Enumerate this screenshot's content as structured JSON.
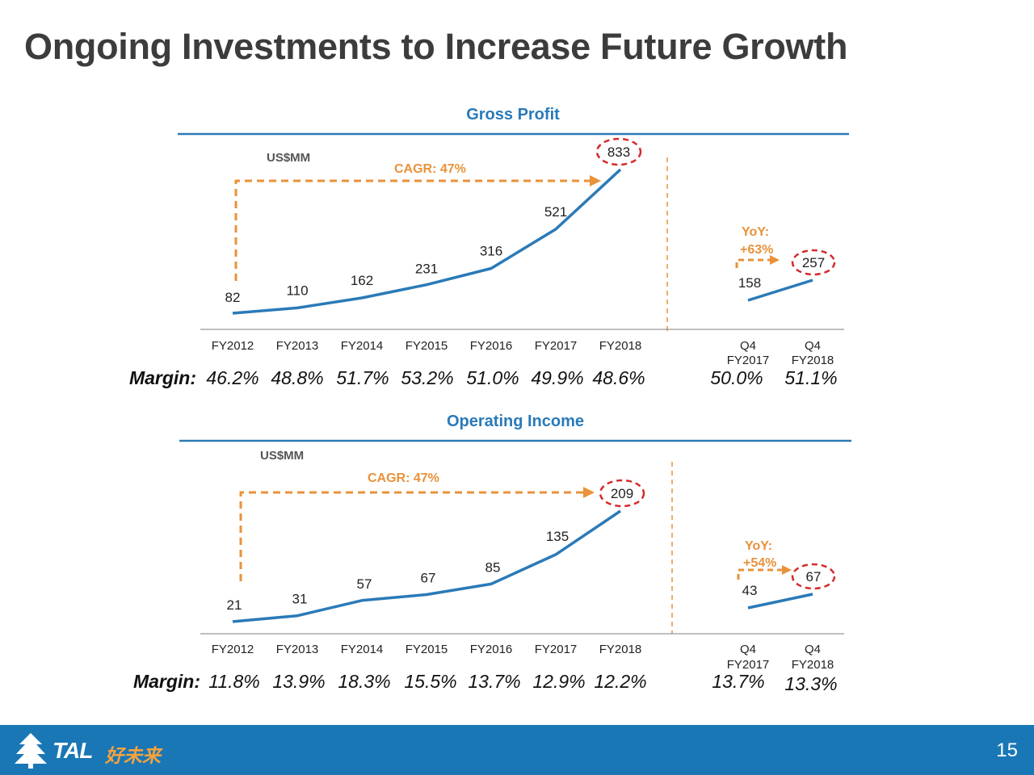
{
  "slide": {
    "title": "Ongoing Investments to Increase Future Growth",
    "page_number": "15"
  },
  "footer": {
    "brand": "TAL",
    "brand_cn": "好未来"
  },
  "colors": {
    "line": "#2a7ab8",
    "accent": "#e8923a",
    "highlight": "#d62a2a",
    "footer": "#1a77b6"
  },
  "chart_data": [
    {
      "type": "line",
      "title": "Gross Profit",
      "unit": "US$MM",
      "annual": {
        "categories": [
          "FY2012",
          "FY2013",
          "FY2014",
          "FY2015",
          "FY2016",
          "FY2017",
          "FY2018"
        ],
        "values": [
          82,
          110,
          162,
          231,
          316,
          521,
          833
        ],
        "margins": [
          "46.2%",
          "48.8%",
          "51.7%",
          "53.2%",
          "51.0%",
          "49.9%",
          "48.6%"
        ],
        "cagr": "CAGR: 47%"
      },
      "quarterly": {
        "categories": [
          [
            "Q4",
            "FY2017"
          ],
          [
            "Q4",
            "FY2018"
          ]
        ],
        "values": [
          158,
          257
        ],
        "margins": [
          "50.0%",
          "51.1%"
        ],
        "yoy": [
          "YoY:",
          "+63%"
        ]
      },
      "margin_label": "Margin:"
    },
    {
      "type": "line",
      "title": "Operating Income",
      "unit": "US$MM",
      "annual": {
        "categories": [
          "FY2012",
          "FY2013",
          "FY2014",
          "FY2015",
          "FY2016",
          "FY2017",
          "FY2018"
        ],
        "values": [
          21,
          31,
          57,
          67,
          85,
          135,
          209
        ],
        "margins": [
          "11.8%",
          "13.9%",
          "18.3%",
          "15.5%",
          "13.7%",
          "12.9%",
          "12.2%"
        ],
        "cagr": "CAGR: 47%"
      },
      "quarterly": {
        "categories": [
          [
            "Q4",
            "FY2017"
          ],
          [
            "Q4",
            "FY2018"
          ]
        ],
        "values": [
          43,
          67
        ],
        "margins": [
          "13.7%",
          "13.3%"
        ],
        "yoy": [
          "YoY:",
          "+54%"
        ]
      },
      "margin_label": "Margin:"
    }
  ]
}
